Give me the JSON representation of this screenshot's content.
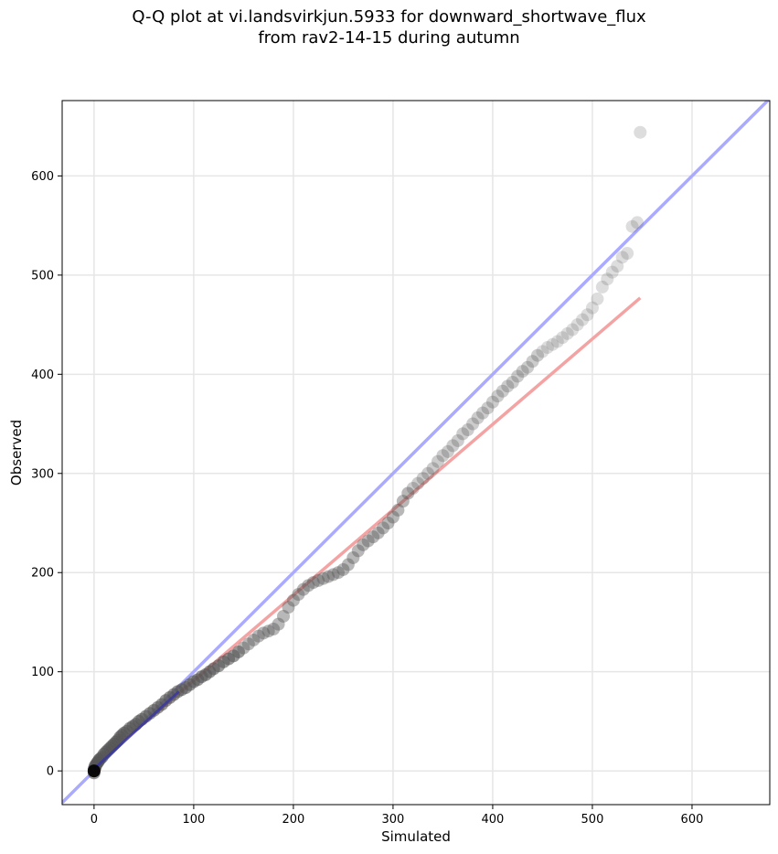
{
  "chart_data": {
    "type": "scatter",
    "title_line1": "Q-Q plot at vi.landsvirkjun.5933 for downward_shortwave_flux",
    "title_line2": "from rav2-14-15 during autumn",
    "xlabel": "Simulated",
    "ylabel": "Observed",
    "xlim": [
      -32,
      678
    ],
    "ylim": [
      -34,
      676
    ],
    "xticks": [
      0,
      100,
      200,
      300,
      400,
      500,
      600
    ],
    "yticks": [
      0,
      100,
      200,
      300,
      400,
      500,
      600
    ],
    "grid": true,
    "reference_line": {
      "color": "#aaaaff",
      "description": "1:1 line"
    },
    "fit_line": {
      "color": "#f4a3a3",
      "x": [
        0,
        548
      ],
      "y": [
        5,
        477
      ]
    },
    "lowquantile_line": {
      "color": "#3333aa",
      "x": [
        0,
        85
      ],
      "y": [
        2,
        80
      ]
    },
    "points": {
      "color": "#555555",
      "x": [
        0,
        0,
        0,
        1,
        1,
        2,
        3,
        4,
        5,
        6,
        8,
        10,
        12,
        14,
        16,
        18,
        20,
        22,
        24,
        26,
        28,
        30,
        33,
        36,
        39,
        42,
        45,
        48,
        52,
        56,
        60,
        64,
        68,
        72,
        76,
        80,
        84,
        88,
        92,
        96,
        100,
        104,
        108,
        112,
        116,
        120,
        125,
        130,
        135,
        140,
        145,
        150,
        155,
        160,
        165,
        170,
        175,
        180,
        185,
        190,
        195,
        200,
        205,
        210,
        215,
        220,
        225,
        230,
        235,
        240,
        245,
        250,
        255,
        260,
        265,
        270,
        275,
        280,
        285,
        290,
        295,
        300,
        305,
        310,
        315,
        320,
        325,
        330,
        335,
        340,
        345,
        350,
        355,
        360,
        365,
        370,
        375,
        380,
        385,
        390,
        395,
        400,
        405,
        410,
        415,
        420,
        425,
        430,
        435,
        440,
        445,
        450,
        455,
        460,
        465,
        470,
        475,
        480,
        485,
        490,
        495,
        500,
        505,
        510,
        515,
        520,
        525,
        530,
        535,
        540,
        545,
        548
      ],
      "y": [
        -2,
        0,
        2,
        3,
        5,
        6,
        8,
        9,
        11,
        12,
        14,
        17,
        19,
        21,
        23,
        25,
        27,
        29,
        31,
        34,
        36,
        38,
        40,
        43,
        45,
        47,
        50,
        52,
        55,
        58,
        61,
        64,
        67,
        71,
        74,
        77,
        80,
        82,
        84,
        87,
        90,
        92,
        95,
        97,
        100,
        103,
        106,
        110,
        113,
        116,
        120,
        124,
        128,
        132,
        136,
        139,
        141,
        143,
        148,
        156,
        165,
        172,
        178,
        183,
        187,
        190,
        192,
        194,
        196,
        198,
        200,
        203,
        208,
        215,
        222,
        228,
        232,
        236,
        240,
        245,
        250,
        256,
        263,
        272,
        280,
        285,
        290,
        295,
        300,
        305,
        312,
        318,
        322,
        328,
        333,
        340,
        344,
        350,
        356,
        361,
        366,
        372,
        378,
        383,
        388,
        392,
        398,
        403,
        407,
        413,
        419,
        423,
        427,
        430,
        433,
        437,
        441,
        445,
        450,
        455,
        460,
        467,
        476,
        488,
        496,
        503,
        509,
        518,
        522,
        549,
        553,
        644
      ]
    }
  }
}
